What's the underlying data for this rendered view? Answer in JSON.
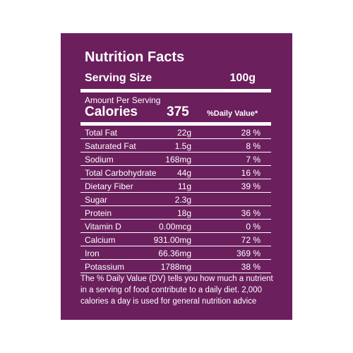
{
  "header": {
    "title": "Nutrition Facts",
    "serving_label": "Serving Size",
    "serving_value": "100g"
  },
  "calories": {
    "amount_per": "Amount Per Serving",
    "label": "Calories",
    "value": "375",
    "dv_header": "%Daily Value*"
  },
  "table": {
    "rows": [
      {
        "name": "Total Fat",
        "amount": "22g",
        "dv": "28 %"
      },
      {
        "name": "Saturated Fat",
        "amount": "1.5g",
        "dv": "8 %"
      },
      {
        "name": "Sodium",
        "amount": "168mg",
        "dv": "7 %"
      },
      {
        "name": "Total Carbohydrate",
        "amount": "44g",
        "dv": "16 %"
      },
      {
        "name": "Dietary Fiber",
        "amount": "11g",
        "dv": "39 %"
      },
      {
        "name": "Sugar",
        "amount": "2.3g"
      },
      {
        "name": "Protein",
        "amount": "18g",
        "dv": "36 %"
      },
      {
        "name": "Vitamin D",
        "amount": "0.00mcg",
        "dv": "0 %"
      },
      {
        "name": "Calcium",
        "amount": "931.00mg",
        "dv": "72 %"
      },
      {
        "name": "Iron",
        "amount": "66.36mg",
        "dv": "369 %"
      },
      {
        "name": "Potassium",
        "amount": "1788mg",
        "dv": "38 %"
      }
    ]
  },
  "footnote": {
    "lines": [
      "The % Daily Value (DV) tells you how much a nutrient",
      "in a serving of food contribute to a daily diet. 2,000",
      "calories a day is used for general nutrition advice"
    ]
  }
}
